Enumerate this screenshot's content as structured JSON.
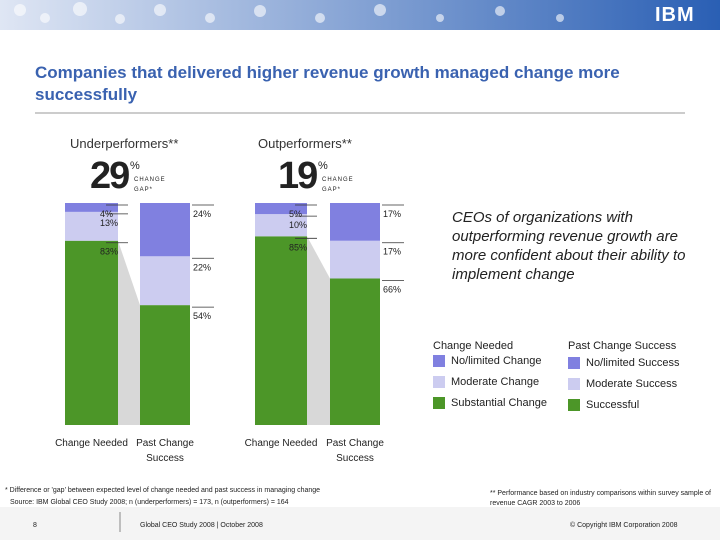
{
  "header": {
    "logo": "IBM",
    "title": "Companies that delivered higher revenue growth managed change more successfully"
  },
  "chart_data": [
    {
      "type": "stacked_bar",
      "title": "Underperformers**",
      "gap": 29,
      "gap_unit": "%",
      "gap_label": "CHANGE GAP*",
      "categories": [
        "Change Needed",
        "Past Change Success"
      ],
      "ylim": [
        0,
        100
      ],
      "series": [
        {
          "color": "#8080e0",
          "values": [
            4,
            24
          ],
          "value_labels": [
            "4%",
            "24%"
          ]
        },
        {
          "color": "#ccccf0",
          "values": [
            13,
            22
          ],
          "value_labels": [
            "13%",
            "22%"
          ]
        },
        {
          "color": "#4c9628",
          "values": [
            83,
            54
          ],
          "value_labels": [
            "83%",
            "54%"
          ]
        }
      ]
    },
    {
      "type": "stacked_bar",
      "title": "Outperformers**",
      "gap": 19,
      "gap_unit": "%",
      "gap_label": "CHANGE GAP*",
      "categories": [
        "Change Needed",
        "Past Change Success"
      ],
      "ylim": [
        0,
        100
      ],
      "series": [
        {
          "color": "#8080e0",
          "values": [
            5,
            17
          ],
          "value_labels": [
            "5%",
            "17%"
          ]
        },
        {
          "color": "#ccccf0",
          "values": [
            10,
            17
          ],
          "value_labels": [
            "10%",
            "17%"
          ]
        },
        {
          "color": "#4c9628",
          "values": [
            85,
            66
          ],
          "value_labels": [
            "85%",
            "66%"
          ]
        }
      ]
    }
  ],
  "callout": "CEOs of organizations with outperforming revenue growth are more confident about their ability to implement change",
  "legend": [
    {
      "title": "Change Needed",
      "items": [
        "No/limited Change",
        "Moderate Change",
        "Substantial Change"
      ]
    },
    {
      "title": "Past Change Success",
      "items": [
        "No/limited Success",
        "Moderate Success",
        "Successful"
      ]
    }
  ],
  "footnotes": {
    "gap": "* Difference or 'gap' between expected level of change needed and past success in managing change",
    "source": "Source: IBM Global CEO Study 2008; n (underperformers) = 173, n (outperformers) = 164",
    "performance": "** Performance based on industry comparisons within survey sample of revenue CAGR 2003 to 2006"
  },
  "footer": {
    "page": "8",
    "study": "Global CEO Study 2008 | October 2008",
    "copyright": "© Copyright IBM Corporation 2008"
  }
}
